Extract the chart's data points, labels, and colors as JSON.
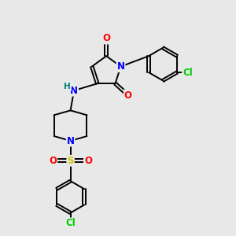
{
  "background_color": "#e8e8e8",
  "fig_size": [
    3.0,
    3.0
  ],
  "dpi": 100,
  "atom_colors": {
    "C": "#000000",
    "N": "#0000ff",
    "O": "#ff0000",
    "S": "#cccc00",
    "Cl": "#00cc00",
    "H": "#008080"
  },
  "bond_color": "#000000",
  "bond_width": 1.4,
  "font_size_atoms": 8.5
}
